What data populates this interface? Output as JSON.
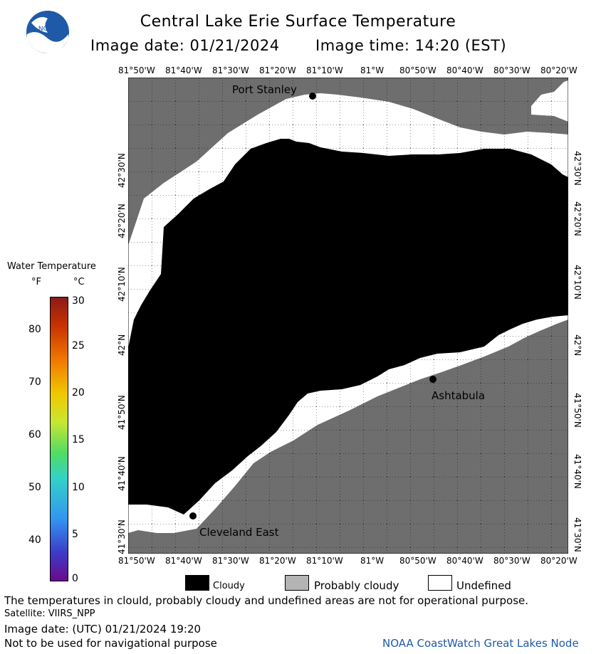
{
  "header": {
    "title": "Central Lake Erie Surface Temperature",
    "image_date": "Image date: 01/21/2024",
    "image_time": "Image time: 14:20 (EST)",
    "logo_text": "NOAA"
  },
  "map": {
    "lon_ticks": [
      "81°50'W",
      "81°40'W",
      "81°30'W",
      "81°20'W",
      "81°10'W",
      "81°W",
      "80°50'W",
      "80°40'W",
      "80°30'W",
      "80°20'W"
    ],
    "lat_ticks": [
      "42°30'N",
      "42°20'N",
      "42°10'N",
      "42°N",
      "41°50'N",
      "41°40'N",
      "41°30'N"
    ],
    "places": [
      {
        "name": "Port Stanley"
      },
      {
        "name": "Ashtabula"
      },
      {
        "name": "Cleveland East"
      }
    ],
    "colors": {
      "land": "#6e6e6e",
      "cloud": "#000000",
      "undefined": "#ffffff"
    }
  },
  "colorbar": {
    "title": "Water Temperature",
    "f_label": "°F",
    "c_label": "°C",
    "f_ticks": [
      "80",
      "70",
      "60",
      "50",
      "40"
    ],
    "c_ticks": [
      "30",
      "25",
      "20",
      "15",
      "10",
      "5",
      "0"
    ]
  },
  "legend": {
    "cloudy": "Cloudy",
    "probably_cloudy": "Probably cloudy",
    "undefined": "Undefined"
  },
  "footer": {
    "disclaimer": "The temperatures in clould, probably cloudy and undefined areas are not for operational purpose.",
    "satellite": "Satellite: VIIRS_NPP",
    "utc_date": "Image date: (UTC) 01/21/2024  19:20",
    "nav": "Not to be used for navigational purpose",
    "credit": "NOAA CoastWatch Great Lakes Node"
  }
}
